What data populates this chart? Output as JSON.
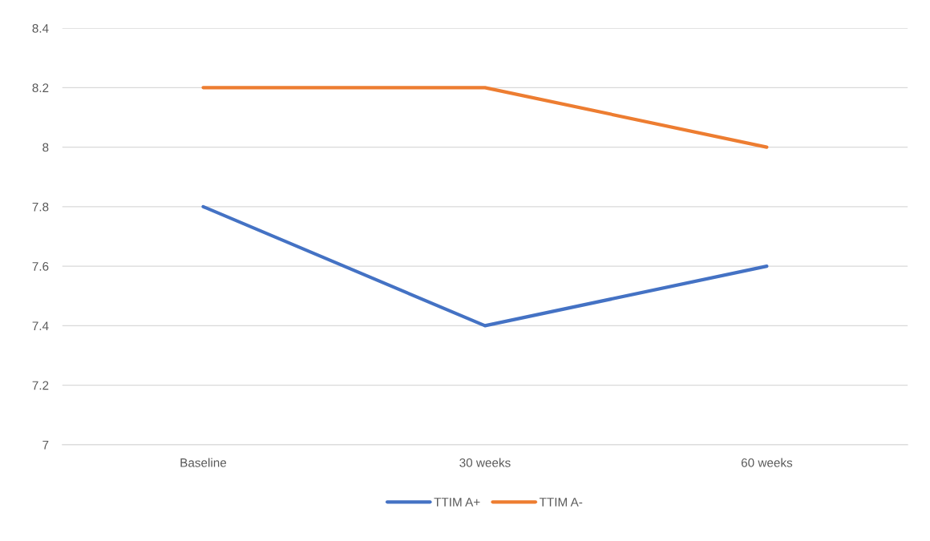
{
  "chart_data": {
    "type": "line",
    "categories": [
      "Baseline",
      "30 weeks",
      "60 weeks"
    ],
    "series": [
      {
        "name": "TTIM A+",
        "color": "#4472c4",
        "values": [
          7.8,
          7.4,
          7.6
        ]
      },
      {
        "name": "TTIM A-",
        "color": "#ed7d31",
        "values": [
          8.2,
          8.2,
          8.0
        ]
      }
    ],
    "ylim": [
      7,
      8.4
    ],
    "yticks": [
      7,
      7.2,
      7.4,
      7.6,
      7.8,
      8,
      8.2,
      8.4
    ],
    "grid": "y",
    "legend": "bottom",
    "marker": "none",
    "line_style": "solid"
  }
}
